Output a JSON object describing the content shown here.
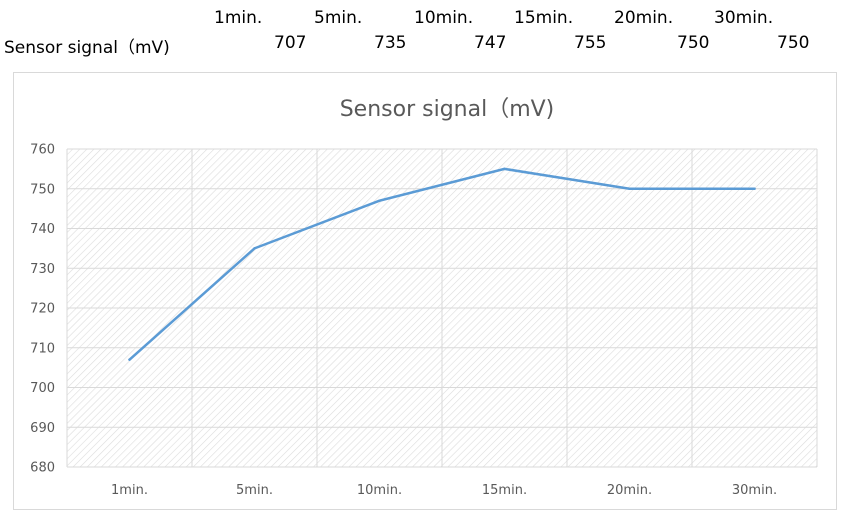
{
  "sheet": {
    "headers": [
      "1min.",
      "5min.",
      "10min.",
      "15min.",
      "20min.",
      "30min."
    ],
    "row_label": "Sensor signal（mV)",
    "row_values": [
      "707",
      "735",
      "747",
      "755",
      "750",
      "750"
    ]
  },
  "chart_data": {
    "type": "line",
    "title": "Sensor signal（mV)",
    "xlabel": "",
    "ylabel": "",
    "categories": [
      "1min.",
      "5min.",
      "10min.",
      "15min.",
      "20min.",
      "30min."
    ],
    "series": [
      {
        "values": [
          707,
          735,
          747,
          755,
          750,
          750
        ]
      }
    ],
    "ylim": [
      680,
      760
    ],
    "yticks": [
      "680",
      "690",
      "700",
      "710",
      "720",
      "730",
      "740",
      "750",
      "760"
    ],
    "grid": true,
    "legend": "none",
    "colors": {
      "line": "#5b9bd5",
      "grid": "#d9d9d9",
      "text": "#595959",
      "hatch": "#d9d9d9"
    }
  }
}
